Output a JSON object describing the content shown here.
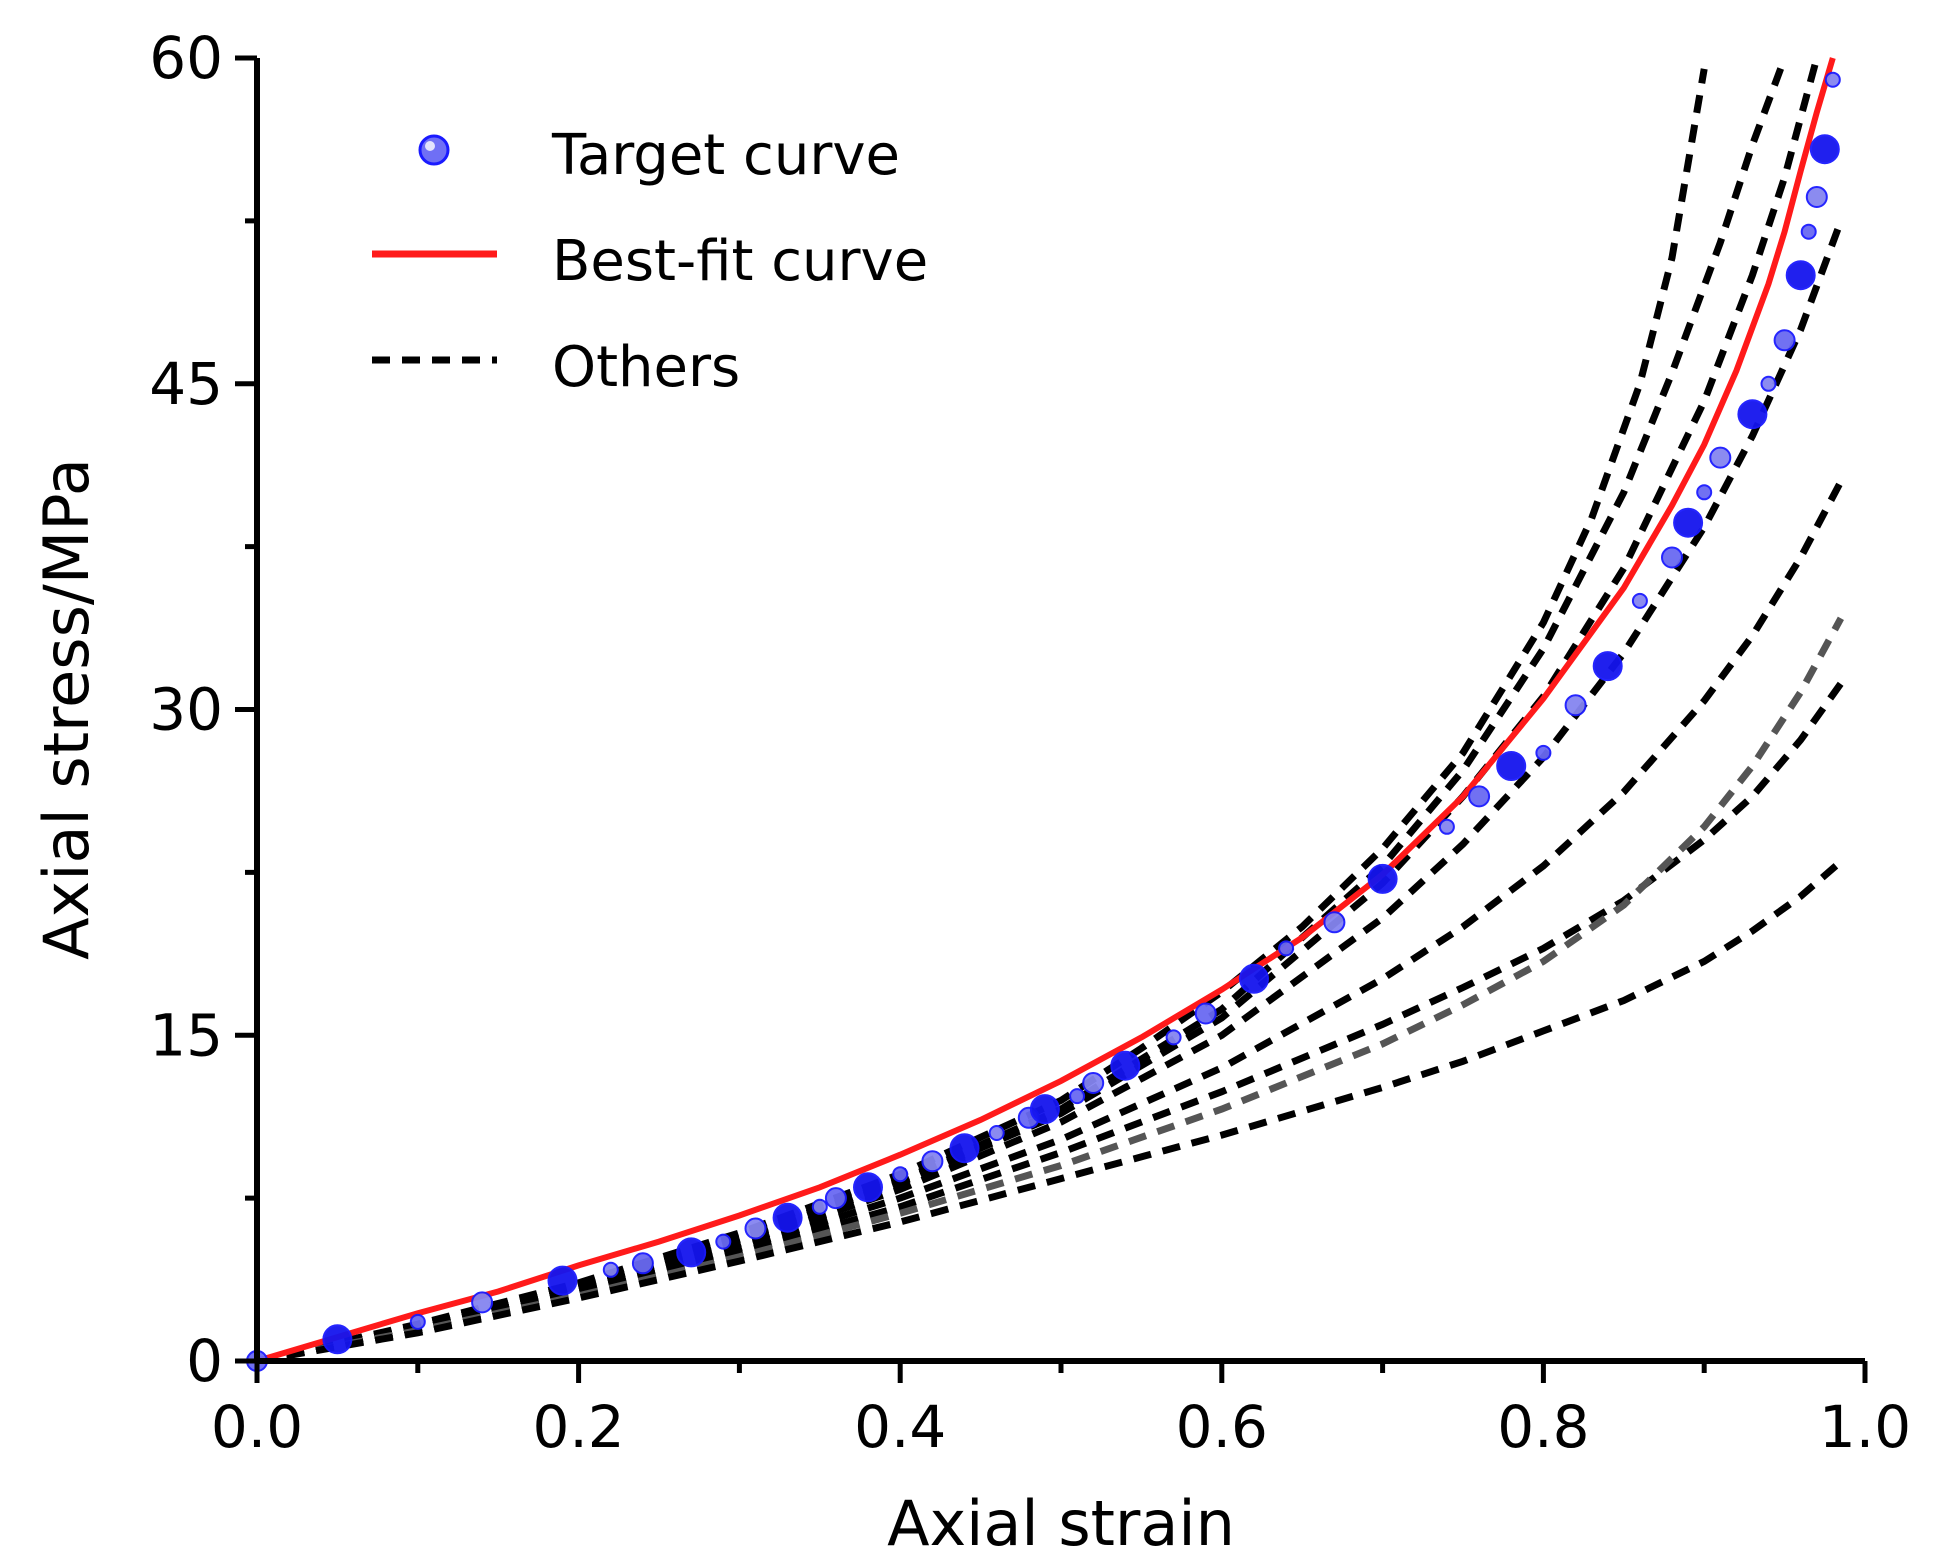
{
  "chart_data": {
    "type": "scatter+line",
    "title": "",
    "xlabel": "Axial strain",
    "ylabel": "Axial stress/MPa",
    "xlim": [
      0.0,
      1.0
    ],
    "ylim": [
      0,
      60
    ],
    "xticks": [
      "0.0",
      "0.2",
      "0.4",
      "0.6",
      "0.8",
      "1.0"
    ],
    "xtick_values": [
      0.0,
      0.2,
      0.4,
      0.6,
      0.8,
      1.0
    ],
    "yticks": [
      "0",
      "15",
      "30",
      "45",
      "60"
    ],
    "ytick_values": [
      0,
      15,
      30,
      45,
      60
    ],
    "legend_position": "top-left",
    "legend": [
      {
        "label": "Target curve",
        "style": "markers"
      },
      {
        "label": "Best-fit curve",
        "style": "solid"
      },
      {
        "label": "Others",
        "style": "dashed"
      }
    ],
    "colors": {
      "target": "#1a1aff",
      "best_fit": "#ff1a1a",
      "others": "#000000",
      "others_gray": "#555555"
    },
    "target_curve": {
      "x": [
        0.0,
        0.05,
        0.1,
        0.14,
        0.19,
        0.22,
        0.24,
        0.27,
        0.29,
        0.31,
        0.33,
        0.35,
        0.36,
        0.38,
        0.4,
        0.42,
        0.44,
        0.46,
        0.48,
        0.49,
        0.51,
        0.52,
        0.54,
        0.57,
        0.59,
        0.62,
        0.64,
        0.67,
        0.7,
        0.74,
        0.76,
        0.78,
        0.8,
        0.82,
        0.84,
        0.86,
        0.88,
        0.89,
        0.9,
        0.91,
        0.93,
        0.94,
        0.95,
        0.96,
        0.965,
        0.97,
        0.975,
        0.98
      ],
      "y": [
        0.0,
        1.0,
        1.8,
        2.7,
        3.7,
        4.2,
        4.5,
        5.0,
        5.5,
        6.1,
        6.6,
        7.1,
        7.5,
        8.0,
        8.6,
        9.2,
        9.8,
        10.5,
        11.2,
        11.6,
        12.2,
        12.8,
        13.6,
        14.9,
        16.0,
        17.6,
        19.0,
        20.2,
        22.2,
        24.6,
        26.0,
        27.4,
        28.0,
        30.2,
        32.0,
        35.0,
        37.0,
        38.6,
        40.0,
        41.6,
        43.6,
        45.0,
        47.0,
        50.0,
        52.0,
        53.6,
        55.8,
        59.0
      ]
    },
    "best_fit_curve": {
      "x": [
        0.0,
        0.05,
        0.1,
        0.15,
        0.2,
        0.25,
        0.3,
        0.35,
        0.4,
        0.45,
        0.5,
        0.55,
        0.6,
        0.65,
        0.7,
        0.75,
        0.8,
        0.85,
        0.88,
        0.9,
        0.92,
        0.94,
        0.95,
        0.96,
        0.97,
        0.98
      ],
      "y": [
        0.0,
        1.1,
        2.2,
        3.2,
        4.4,
        5.5,
        6.7,
        8.0,
        9.5,
        11.1,
        12.9,
        14.9,
        17.1,
        19.5,
        22.4,
        26.0,
        30.5,
        35.6,
        39.4,
        42.2,
        45.6,
        49.6,
        52.0,
        54.8,
        57.5,
        60.0
      ]
    },
    "other_curves": [
      {
        "x": [
          0.0,
          0.1,
          0.2,
          0.3,
          0.4,
          0.5,
          0.55,
          0.6,
          0.65,
          0.7,
          0.75,
          0.8,
          0.83,
          0.86,
          0.88,
          0.9
        ],
        "y": [
          0.0,
          1.7,
          3.6,
          5.9,
          8.6,
          12.0,
          14.4,
          17.0,
          20.0,
          23.6,
          28.0,
          34.0,
          38.8,
          45.0,
          50.8,
          59.5
        ],
        "tone": "black"
      },
      {
        "x": [
          0.0,
          0.1,
          0.2,
          0.3,
          0.4,
          0.5,
          0.6,
          0.7,
          0.75,
          0.8,
          0.85,
          0.88,
          0.91,
          0.93,
          0.95
        ],
        "y": [
          0.0,
          1.6,
          3.5,
          5.7,
          8.3,
          11.6,
          16.2,
          22.8,
          27.2,
          32.8,
          40.0,
          45.5,
          51.5,
          56.0,
          60.0
        ],
        "tone": "black"
      },
      {
        "x": [
          0.0,
          0.1,
          0.2,
          0.3,
          0.4,
          0.5,
          0.6,
          0.7,
          0.75,
          0.8,
          0.85,
          0.9,
          0.93,
          0.95,
          0.97
        ],
        "y": [
          0.0,
          1.6,
          3.4,
          5.6,
          8.2,
          11.4,
          15.8,
          22.0,
          26.0,
          30.6,
          36.5,
          44.2,
          50.0,
          54.5,
          60.0
        ],
        "tone": "black"
      },
      {
        "x": [
          0.0,
          0.1,
          0.2,
          0.3,
          0.4,
          0.5,
          0.6,
          0.7,
          0.75,
          0.8,
          0.85,
          0.9,
          0.93,
          0.96,
          0.985
        ],
        "y": [
          0.0,
          1.5,
          3.3,
          5.4,
          7.9,
          11.0,
          15.0,
          20.4,
          23.8,
          27.8,
          32.6,
          38.4,
          42.6,
          47.5,
          52.5
        ],
        "tone": "black"
      },
      {
        "x": [
          0.0,
          0.1,
          0.2,
          0.3,
          0.4,
          0.5,
          0.6,
          0.7,
          0.75,
          0.8,
          0.85,
          0.9,
          0.93,
          0.96,
          0.985
        ],
        "y": [
          0.0,
          1.5,
          3.2,
          5.2,
          7.5,
          10.2,
          13.5,
          17.6,
          20.0,
          22.8,
          26.2,
          30.4,
          33.4,
          37.0,
          40.5
        ],
        "tone": "black"
      },
      {
        "x": [
          0.0,
          0.1,
          0.2,
          0.3,
          0.4,
          0.5,
          0.6,
          0.7,
          0.75,
          0.8,
          0.85,
          0.9,
          0.93,
          0.96,
          0.985
        ],
        "y": [
          0.0,
          1.4,
          3.1,
          5.0,
          7.1,
          9.6,
          12.4,
          15.5,
          17.2,
          19.0,
          21.2,
          24.0,
          26.0,
          28.6,
          31.2
        ],
        "tone": "black"
      },
      {
        "x": [
          0.0,
          0.1,
          0.2,
          0.3,
          0.4,
          0.5,
          0.6,
          0.7,
          0.75,
          0.8,
          0.85,
          0.9,
          0.93,
          0.96,
          0.985
        ],
        "y": [
          0.0,
          1.4,
          3.0,
          4.8,
          6.8,
          9.0,
          11.6,
          14.6,
          16.4,
          18.4,
          21.0,
          24.6,
          27.4,
          30.8,
          34.2
        ],
        "tone": "gray"
      },
      {
        "x": [
          0.0,
          0.1,
          0.2,
          0.3,
          0.4,
          0.5,
          0.6,
          0.7,
          0.75,
          0.8,
          0.85,
          0.9,
          0.93,
          0.96,
          0.985
        ],
        "y": [
          0.0,
          1.3,
          2.9,
          4.6,
          6.4,
          8.4,
          10.4,
          12.6,
          13.8,
          15.2,
          16.6,
          18.4,
          19.8,
          21.4,
          23.0
        ],
        "tone": "black"
      }
    ]
  }
}
